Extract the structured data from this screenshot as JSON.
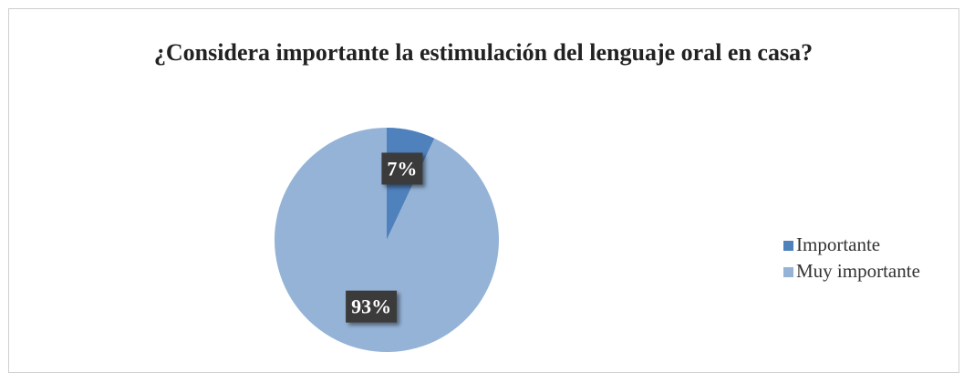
{
  "chart_data": {
    "type": "pie",
    "title": "¿Considera importante la estimulación del lenguaje oral en casa?",
    "categories": [
      "Importante",
      "Muy importante"
    ],
    "values": [
      7,
      93
    ],
    "value_labels": [
      "7%",
      "93%"
    ],
    "colors": [
      "#4f81bd",
      "#95b3d7"
    ],
    "legend": "right"
  }
}
